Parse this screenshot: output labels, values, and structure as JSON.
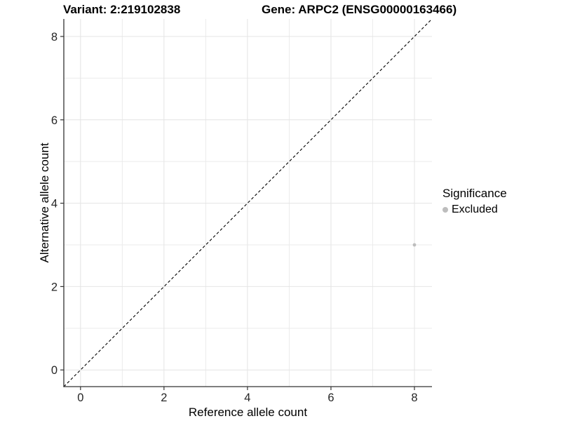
{
  "header": {
    "title_left": "Variant: 2:219102838",
    "title_right": "Gene: ARPC2 (ENSG00000163466)"
  },
  "chart_data": {
    "type": "scatter",
    "titles": [
      "Variant: 2:219102838",
      "Gene: ARPC2 (ENSG00000163466)"
    ],
    "xlabel": "Reference allele count",
    "ylabel": "Alternative allele count",
    "xlim": [
      -0.4,
      8.42
    ],
    "ylim": [
      -0.4,
      8.42
    ],
    "xticks": [
      0,
      2,
      4,
      6,
      8
    ],
    "yticks": [
      0,
      2,
      4,
      6,
      8
    ],
    "minor_gridlines_x": [
      1,
      3,
      5,
      7
    ],
    "minor_gridlines_y": [
      1,
      3,
      5,
      7
    ],
    "grid": "on",
    "series": [
      {
        "name": "Excluded",
        "color": "#bdbdbd",
        "marker": "circle",
        "points": [
          {
            "x": 8,
            "y": 3
          }
        ]
      }
    ],
    "reference_line": {
      "kind": "identity",
      "from": [
        -0.4,
        -0.4
      ],
      "to": [
        8.42,
        8.42
      ],
      "style": "dashed",
      "color": "#000000"
    },
    "legend": {
      "title": "Significance",
      "position": "right",
      "items": [
        {
          "label": "Excluded",
          "color": "#bdbdbd"
        }
      ]
    },
    "colors": {
      "grid_major": "#e4e4e4",
      "grid_minor": "#ebebeb",
      "axis_line": "#333333",
      "tick_mark": "#333333",
      "tick_label": "#262626"
    }
  }
}
